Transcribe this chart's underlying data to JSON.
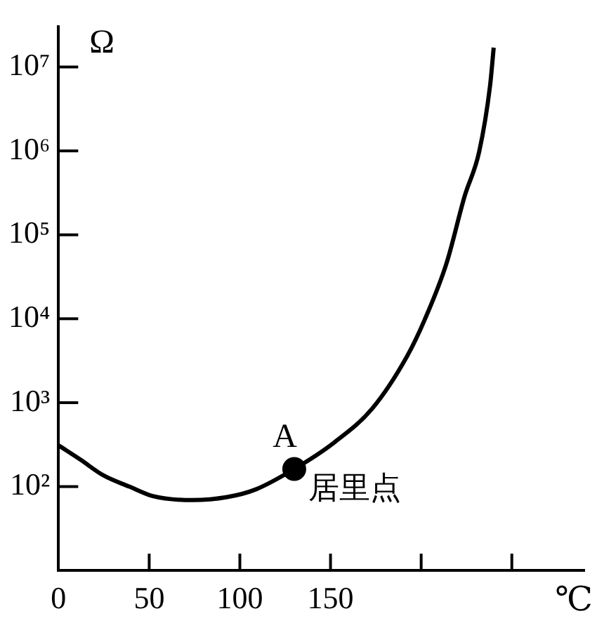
{
  "chart_data": {
    "type": "line",
    "xlabel": "℃",
    "ylabel": "Ω",
    "xlim": [
      0,
      290
    ],
    "xticks": [
      0,
      50,
      100,
      150,
      {
        "value": 200,
        "label": null
      },
      {
        "value": 250,
        "label": null
      }
    ],
    "ylim": [
      10,
      30000000
    ],
    "yticks": [
      {
        "value": 100,
        "label": "10²"
      },
      {
        "value": 1000,
        "label": "10³"
      },
      {
        "value": 10000,
        "label": "10⁴"
      },
      {
        "value": 100000,
        "label": "10⁵"
      },
      {
        "value": 1000000,
        "label": "10⁶"
      },
      {
        "value": 10000000,
        "label": "10⁷"
      }
    ],
    "log": "y",
    "grid": false,
    "legend": false,
    "line_style": "solid",
    "series": [
      {
        "type": "line",
        "color": "#000000",
        "marker": "none",
        "x": [
          0,
          12,
          25,
          39,
          52,
          74,
          93,
          109,
          130,
          152,
          173,
          192,
          202,
          214,
          224,
          232,
          238,
          240
        ],
        "values": [
          310,
          210,
          135,
          100,
          77,
          69,
          75,
          93,
          162,
          335,
          850,
          3500,
          9800,
          46000,
          290000,
          980000,
          6000000,
          17000000
        ]
      },
      {
        "type": "scatter",
        "color": "#000000",
        "marker": "circle",
        "x": [
          130
        ],
        "values": [
          162
        ]
      }
    ],
    "annotations": [
      {
        "text": "A",
        "x": 130,
        "y": 162
      },
      {
        "text": "居里点",
        "x": 130,
        "y": 162
      }
    ]
  }
}
